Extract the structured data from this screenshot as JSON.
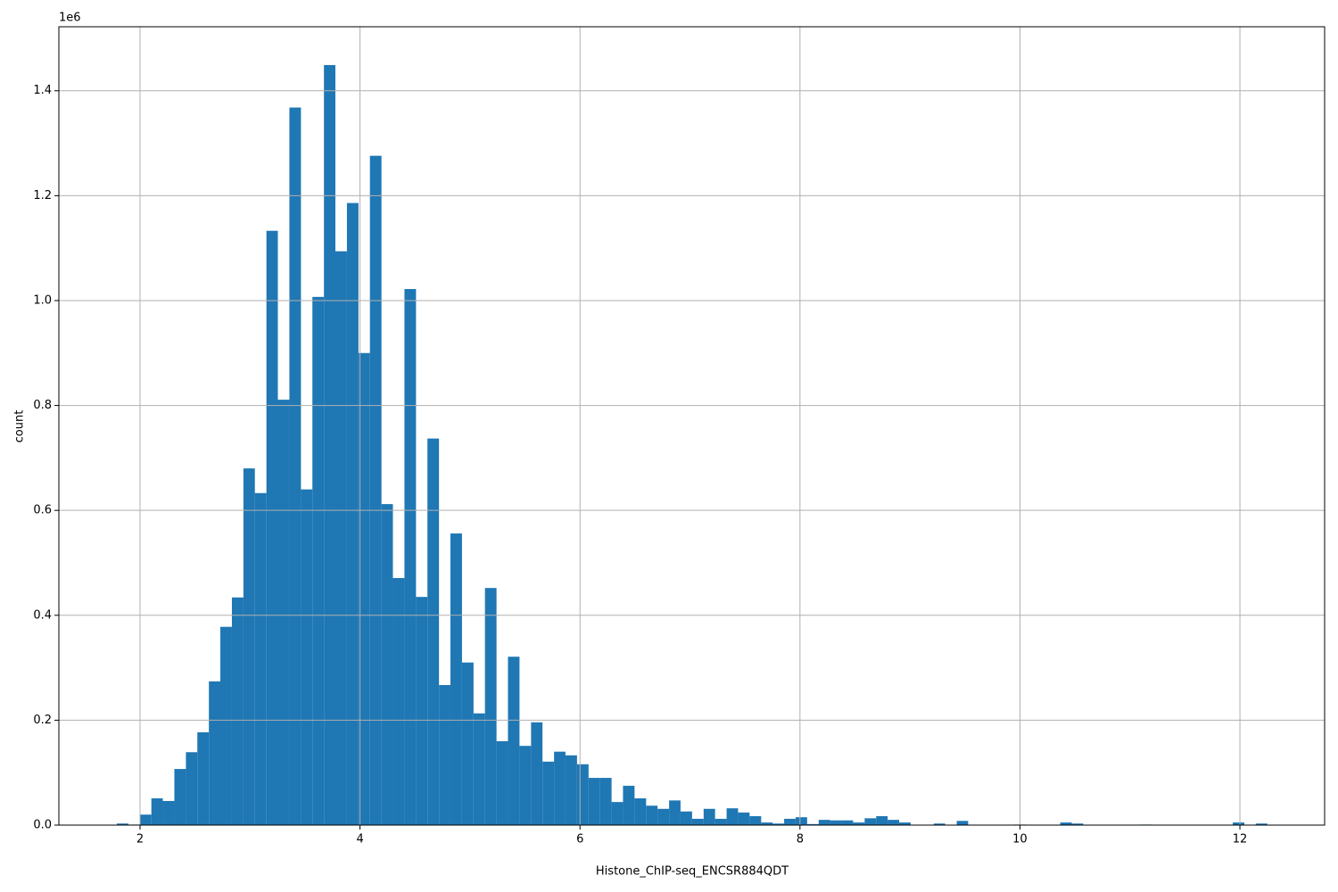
{
  "chart_data": {
    "type": "histogram",
    "x_label": "Histone_ChIP-seq_ENCSR884QDT",
    "y_label": "count",
    "y_offset_label": "1e6",
    "color": "#1f77b4",
    "grid": true,
    "bins": [
      1.789,
      1.894,
      1.998,
      2.103,
      2.207,
      2.312,
      2.417,
      2.521,
      2.626,
      2.73,
      2.835,
      2.94,
      3.044,
      3.149,
      3.253,
      3.358,
      3.463,
      3.567,
      3.672,
      3.776,
      3.881,
      3.986,
      4.09,
      4.195,
      4.299,
      4.404,
      4.509,
      4.613,
      4.718,
      4.822,
      4.927,
      5.032,
      5.136,
      5.241,
      5.345,
      5.45,
      5.555,
      5.659,
      5.764,
      5.868,
      5.973,
      6.078,
      6.182,
      6.287,
      6.391,
      6.496,
      6.601,
      6.705,
      6.81,
      6.914,
      7.019,
      7.124,
      7.228,
      7.333,
      7.437,
      7.542,
      7.647,
      7.751,
      7.856,
      7.96,
      8.065,
      8.17,
      8.274,
      8.379,
      8.483,
      8.588,
      8.693,
      8.797,
      8.902,
      9.006,
      9.111,
      9.216,
      9.32,
      9.425,
      9.529,
      9.634,
      9.739,
      9.843,
      9.948,
      10.052,
      10.157,
      10.262,
      10.366,
      10.471,
      10.575,
      10.68,
      10.785,
      10.889,
      10.994,
      11.098,
      11.203,
      11.308,
      11.412,
      11.517,
      11.621,
      11.726,
      11.831,
      11.935,
      12.04,
      12.144,
      12.249
    ],
    "values": [
      3000,
      1000,
      20000,
      51000,
      46000,
      107000,
      139000,
      177000,
      274000,
      378000,
      434000,
      680000,
      633000,
      1133000,
      811000,
      1368000,
      640000,
      1007000,
      1449000,
      1094000,
      1186000,
      900000,
      1276000,
      612000,
      471000,
      1022000,
      435000,
      737000,
      267000,
      556000,
      310000,
      213000,
      452000,
      160000,
      321000,
      151000,
      196000,
      121000,
      140000,
      133000,
      116000,
      90000,
      90000,
      44000,
      75000,
      51000,
      37000,
      31000,
      47000,
      26000,
      12000,
      31000,
      12000,
      32000,
      24000,
      17000,
      5000,
      3000,
      12000,
      15000,
      2000,
      10000,
      9000,
      9000,
      5000,
      13000,
      17000,
      10000,
      5000,
      0,
      0,
      3000,
      0,
      8000,
      0,
      0,
      0,
      0,
      1000,
      0,
      0,
      0,
      5000,
      3000,
      0,
      0,
      0,
      0,
      0,
      1000,
      0,
      0,
      0,
      0,
      0,
      0,
      0,
      5000,
      0,
      3000
    ],
    "xlim": [
      1.262,
      12.77
    ],
    "ylim": [
      0,
      1522000
    ],
    "xticks": [
      2,
      4,
      6,
      8,
      10,
      12
    ],
    "yticks": [
      {
        "value": 0,
        "label": "0.0"
      },
      {
        "value": 200000,
        "label": "0.2"
      },
      {
        "value": 400000,
        "label": "0.4"
      },
      {
        "value": 600000,
        "label": "0.6"
      },
      {
        "value": 800000,
        "label": "0.8"
      },
      {
        "value": 1000000,
        "label": "1.0"
      },
      {
        "value": 1200000,
        "label": "1.2"
      },
      {
        "value": 1400000,
        "label": "1.4"
      }
    ]
  }
}
